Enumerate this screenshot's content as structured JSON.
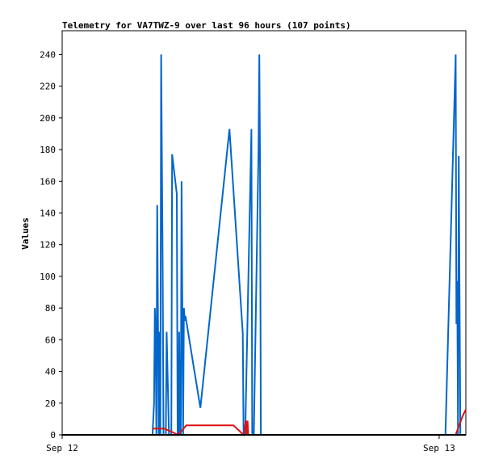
{
  "chart_data": {
    "type": "line",
    "title": "Telemetry for VA7TWZ-9 over last 96 hours (107 points)",
    "xlabel": "",
    "ylabel": "Values",
    "ylim": [
      0,
      255
    ],
    "xlim_hours": [
      0,
      25.7
    ],
    "x_ticks": [
      {
        "label": "Sep 12",
        "hours": 0
      },
      {
        "label": "Sep 13",
        "hours": 24
      }
    ],
    "y_ticks": [
      0,
      20,
      40,
      60,
      80,
      100,
      120,
      140,
      160,
      180,
      200,
      220,
      240
    ],
    "grid": false,
    "legend": "none",
    "series": [
      {
        "color": "#0066cc",
        "x_hours": [
          0,
          5.75,
          5.85,
          5.9,
          5.95,
          6.0,
          6.05,
          6.1,
          6.15,
          6.2,
          6.25,
          6.3,
          6.4,
          6.45,
          6.5,
          6.55,
          6.6,
          6.65,
          6.8,
          6.85,
          6.9,
          6.95,
          7.0,
          7.3,
          7.35,
          7.4,
          7.45,
          7.5,
          7.55,
          7.6,
          7.7,
          7.75,
          7.8,
          7.85,
          8.8,
          10.65,
          11.5,
          11.55,
          11.6,
          11.65,
          12.05,
          12.1,
          12.15,
          12.2,
          12.5,
          12.55,
          12.6,
          12.65,
          12.7,
          24.4,
          25.05,
          25.1,
          25.15,
          25.2,
          25.25,
          25.3,
          25.35,
          25.7
        ],
        "y": [
          0,
          0,
          20,
          80,
          60,
          0,
          145,
          72,
          0,
          65,
          0,
          240,
          105,
          0,
          0,
          0,
          0,
          65,
          0,
          0,
          0,
          0,
          177,
          152,
          0,
          0,
          65,
          0,
          0,
          160,
          0,
          80,
          72,
          75,
          17,
          193,
          64,
          0,
          0,
          0,
          193,
          0,
          0,
          0,
          180,
          240,
          167,
          0,
          0,
          0,
          240,
          70,
          97,
          0,
          176,
          88,
          0,
          0
        ]
      },
      {
        "color": "#dd1111",
        "x_hours": [
          5.75,
          6.3,
          6.5,
          7.4,
          7.9,
          10.9,
          11.55,
          11.7,
          11.75,
          11.8,
          11.85,
          25.05,
          25.5,
          25.7
        ],
        "y": [
          4,
          4,
          4,
          0,
          6,
          6,
          0,
          9,
          0,
          9,
          0,
          0,
          12,
          16
        ]
      }
    ]
  }
}
